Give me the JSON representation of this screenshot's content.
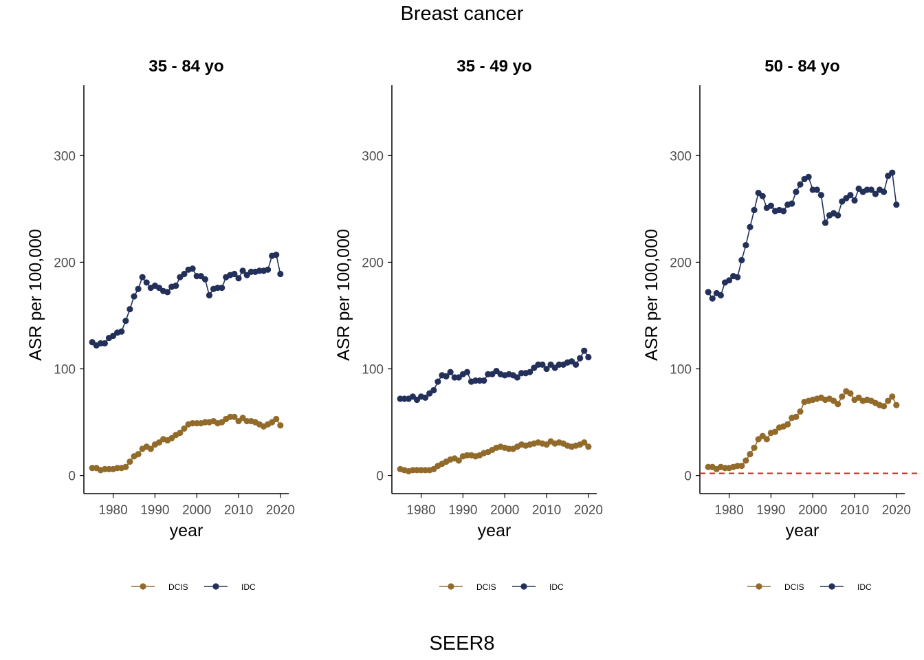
{
  "title": "Breast cancer",
  "caption": "SEER8",
  "colors": {
    "DCIS": "#926B2B",
    "IDC": "#23305A",
    "reference_line": "#E41A1C",
    "axis": "#000000",
    "tick_text": "#4D4D4D"
  },
  "chart_data": [
    {
      "type": "line",
      "title": "35 - 84 yo",
      "xlabel": "year",
      "ylabel": "ASR per 100,000",
      "xlim": [
        1973,
        2022
      ],
      "ylim": [
        -17,
        366
      ],
      "x_ticks": [
        1980,
        1990,
        2000,
        2010,
        2020
      ],
      "y_ticks": [
        0,
        100,
        200,
        300
      ],
      "grid": false,
      "legend": "bottom",
      "reference_line": null,
      "x": [
        1975,
        1976,
        1977,
        1978,
        1979,
        1980,
        1981,
        1982,
        1983,
        1984,
        1985,
        1986,
        1987,
        1988,
        1989,
        1990,
        1991,
        1992,
        1993,
        1994,
        1995,
        1996,
        1997,
        1998,
        1999,
        2000,
        2001,
        2002,
        2003,
        2004,
        2005,
        2006,
        2007,
        2008,
        2009,
        2010,
        2011,
        2012,
        2013,
        2014,
        2015,
        2016,
        2017,
        2018,
        2019,
        2020
      ],
      "series": [
        {
          "name": "DCIS",
          "values": [
            7,
            7,
            5,
            6,
            6,
            6,
            7,
            7,
            8,
            13,
            18,
            20,
            25,
            27,
            25,
            29,
            31,
            34,
            33,
            35,
            38,
            40,
            44,
            48,
            49,
            49,
            49,
            50,
            50,
            51,
            49,
            50,
            53,
            55,
            55,
            51,
            54,
            51,
            51,
            50,
            48,
            46,
            48,
            50,
            53,
            47
          ]
        },
        {
          "name": "IDC",
          "values": [
            125,
            122,
            124,
            124,
            129,
            131,
            134,
            135,
            145,
            156,
            168,
            175,
            186,
            181,
            176,
            178,
            176,
            173,
            172,
            177,
            178,
            186,
            189,
            193,
            194,
            187,
            187,
            184,
            169,
            175,
            176,
            176,
            186,
            188,
            189,
            185,
            192,
            188,
            191,
            191,
            192,
            192,
            193,
            206,
            207,
            189
          ]
        }
      ]
    },
    {
      "type": "line",
      "title": "35 - 49 yo",
      "xlabel": "year",
      "ylabel": "ASR per 100,000",
      "xlim": [
        1973,
        2022
      ],
      "ylim": [
        -17,
        366
      ],
      "x_ticks": [
        1980,
        1990,
        2000,
        2010,
        2020
      ],
      "y_ticks": [
        0,
        100,
        200,
        300
      ],
      "grid": false,
      "legend": "bottom",
      "reference_line": null,
      "x": [
        1975,
        1976,
        1977,
        1978,
        1979,
        1980,
        1981,
        1982,
        1983,
        1984,
        1985,
        1986,
        1987,
        1988,
        1989,
        1990,
        1991,
        1992,
        1993,
        1994,
        1995,
        1996,
        1997,
        1998,
        1999,
        2000,
        2001,
        2002,
        2003,
        2004,
        2005,
        2006,
        2007,
        2008,
        2009,
        2010,
        2011,
        2012,
        2013,
        2014,
        2015,
        2016,
        2017,
        2018,
        2019,
        2020
      ],
      "series": [
        {
          "name": "DCIS",
          "values": [
            6,
            5,
            4,
            5,
            5,
            5,
            5,
            5,
            6,
            9,
            11,
            13,
            15,
            16,
            14,
            18,
            19,
            19,
            18,
            19,
            21,
            22,
            24,
            26,
            27,
            26,
            25,
            25,
            27,
            29,
            28,
            29,
            30,
            31,
            30,
            29,
            32,
            30,
            31,
            30,
            28,
            27,
            28,
            29,
            31,
            27
          ]
        },
        {
          "name": "IDC",
          "values": [
            72,
            72,
            72,
            74,
            71,
            74,
            73,
            77,
            80,
            88,
            94,
            93,
            97,
            92,
            92,
            95,
            97,
            88,
            89,
            89,
            89,
            95,
            95,
            98,
            95,
            94,
            95,
            94,
            92,
            96,
            96,
            97,
            101,
            104,
            104,
            100,
            104,
            101,
            104,
            104,
            106,
            107,
            104,
            110,
            117,
            111
          ]
        }
      ]
    },
    {
      "type": "line",
      "title": "50 - 84 yo",
      "xlabel": "year",
      "ylabel": "ASR per 100,000",
      "xlim": [
        1973,
        2022
      ],
      "ylim": [
        -17,
        366
      ],
      "x_ticks": [
        1980,
        1990,
        2000,
        2010,
        2020
      ],
      "y_ticks": [
        0,
        100,
        200,
        300
      ],
      "grid": false,
      "legend": "bottom",
      "reference_line": {
        "y": 2,
        "style": "dashed"
      },
      "x": [
        1975,
        1976,
        1977,
        1978,
        1979,
        1980,
        1981,
        1982,
        1983,
        1984,
        1985,
        1986,
        1987,
        1988,
        1989,
        1990,
        1991,
        1992,
        1993,
        1994,
        1995,
        1996,
        1997,
        1998,
        1999,
        2000,
        2001,
        2002,
        2003,
        2004,
        2005,
        2006,
        2007,
        2008,
        2009,
        2010,
        2011,
        2012,
        2013,
        2014,
        2015,
        2016,
        2017,
        2018,
        2019,
        2020
      ],
      "series": [
        {
          "name": "DCIS",
          "values": [
            8,
            8,
            6,
            8,
            7,
            7,
            8,
            9,
            9,
            14,
            20,
            26,
            34,
            37,
            34,
            40,
            41,
            45,
            46,
            48,
            54,
            55,
            60,
            69,
            70,
            71,
            72,
            73,
            71,
            72,
            70,
            67,
            74,
            79,
            77,
            71,
            73,
            70,
            71,
            70,
            68,
            66,
            65,
            70,
            74,
            66
          ]
        },
        {
          "name": "IDC",
          "values": [
            172,
            166,
            171,
            169,
            181,
            183,
            187,
            186,
            202,
            216,
            233,
            249,
            265,
            262,
            251,
            253,
            248,
            249,
            248,
            254,
            255,
            266,
            273,
            278,
            280,
            268,
            268,
            263,
            237,
            244,
            246,
            244,
            257,
            260,
            263,
            258,
            269,
            266,
            268,
            268,
            264,
            268,
            266,
            281,
            284,
            254
          ]
        }
      ]
    }
  ]
}
